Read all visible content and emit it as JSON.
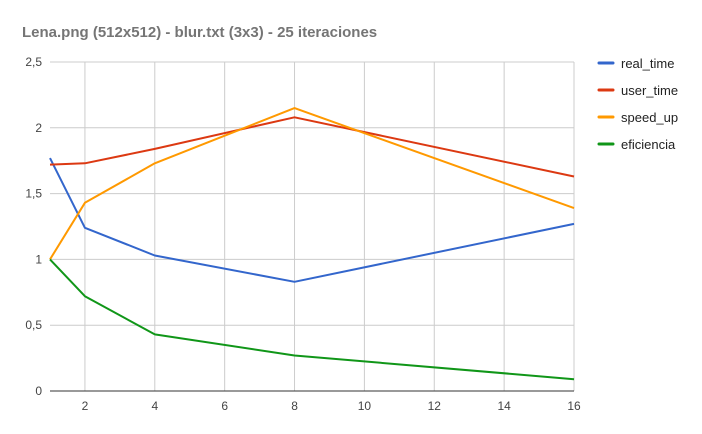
{
  "chart_data": {
    "type": "line",
    "title": "Lena.png (512x512) - blur.txt (3x3) - 25 iteraciones",
    "xlabel": "",
    "ylabel": "",
    "x": [
      1,
      2,
      4,
      8,
      16
    ],
    "xlim": [
      1,
      16
    ],
    "xticks": [
      2,
      4,
      6,
      8,
      10,
      12,
      14,
      16
    ],
    "xtick_labels": [
      "2",
      "4",
      "6",
      "8",
      "10",
      "12",
      "14",
      "16"
    ],
    "ylim": [
      0,
      2.5
    ],
    "yticks": [
      0,
      0.5,
      1,
      1.5,
      2,
      2.5
    ],
    "ytick_labels": [
      "0",
      "0,5",
      "1",
      "1,5",
      "2",
      "2,5"
    ],
    "grid": true,
    "legend_position": "right",
    "series": [
      {
        "name": "real_time",
        "color": "#3366cc",
        "values": [
          1.77,
          1.24,
          1.03,
          0.83,
          1.27
        ]
      },
      {
        "name": "user_time",
        "color": "#dc3912",
        "values": [
          1.72,
          1.73,
          1.84,
          2.08,
          1.63
        ]
      },
      {
        "name": "speed_up",
        "color": "#ff9900",
        "values": [
          1.0,
          1.43,
          1.73,
          2.15,
          1.39
        ]
      },
      {
        "name": "eficiencia",
        "color": "#109618",
        "values": [
          1.0,
          0.72,
          0.43,
          0.27,
          0.09
        ]
      }
    ]
  }
}
